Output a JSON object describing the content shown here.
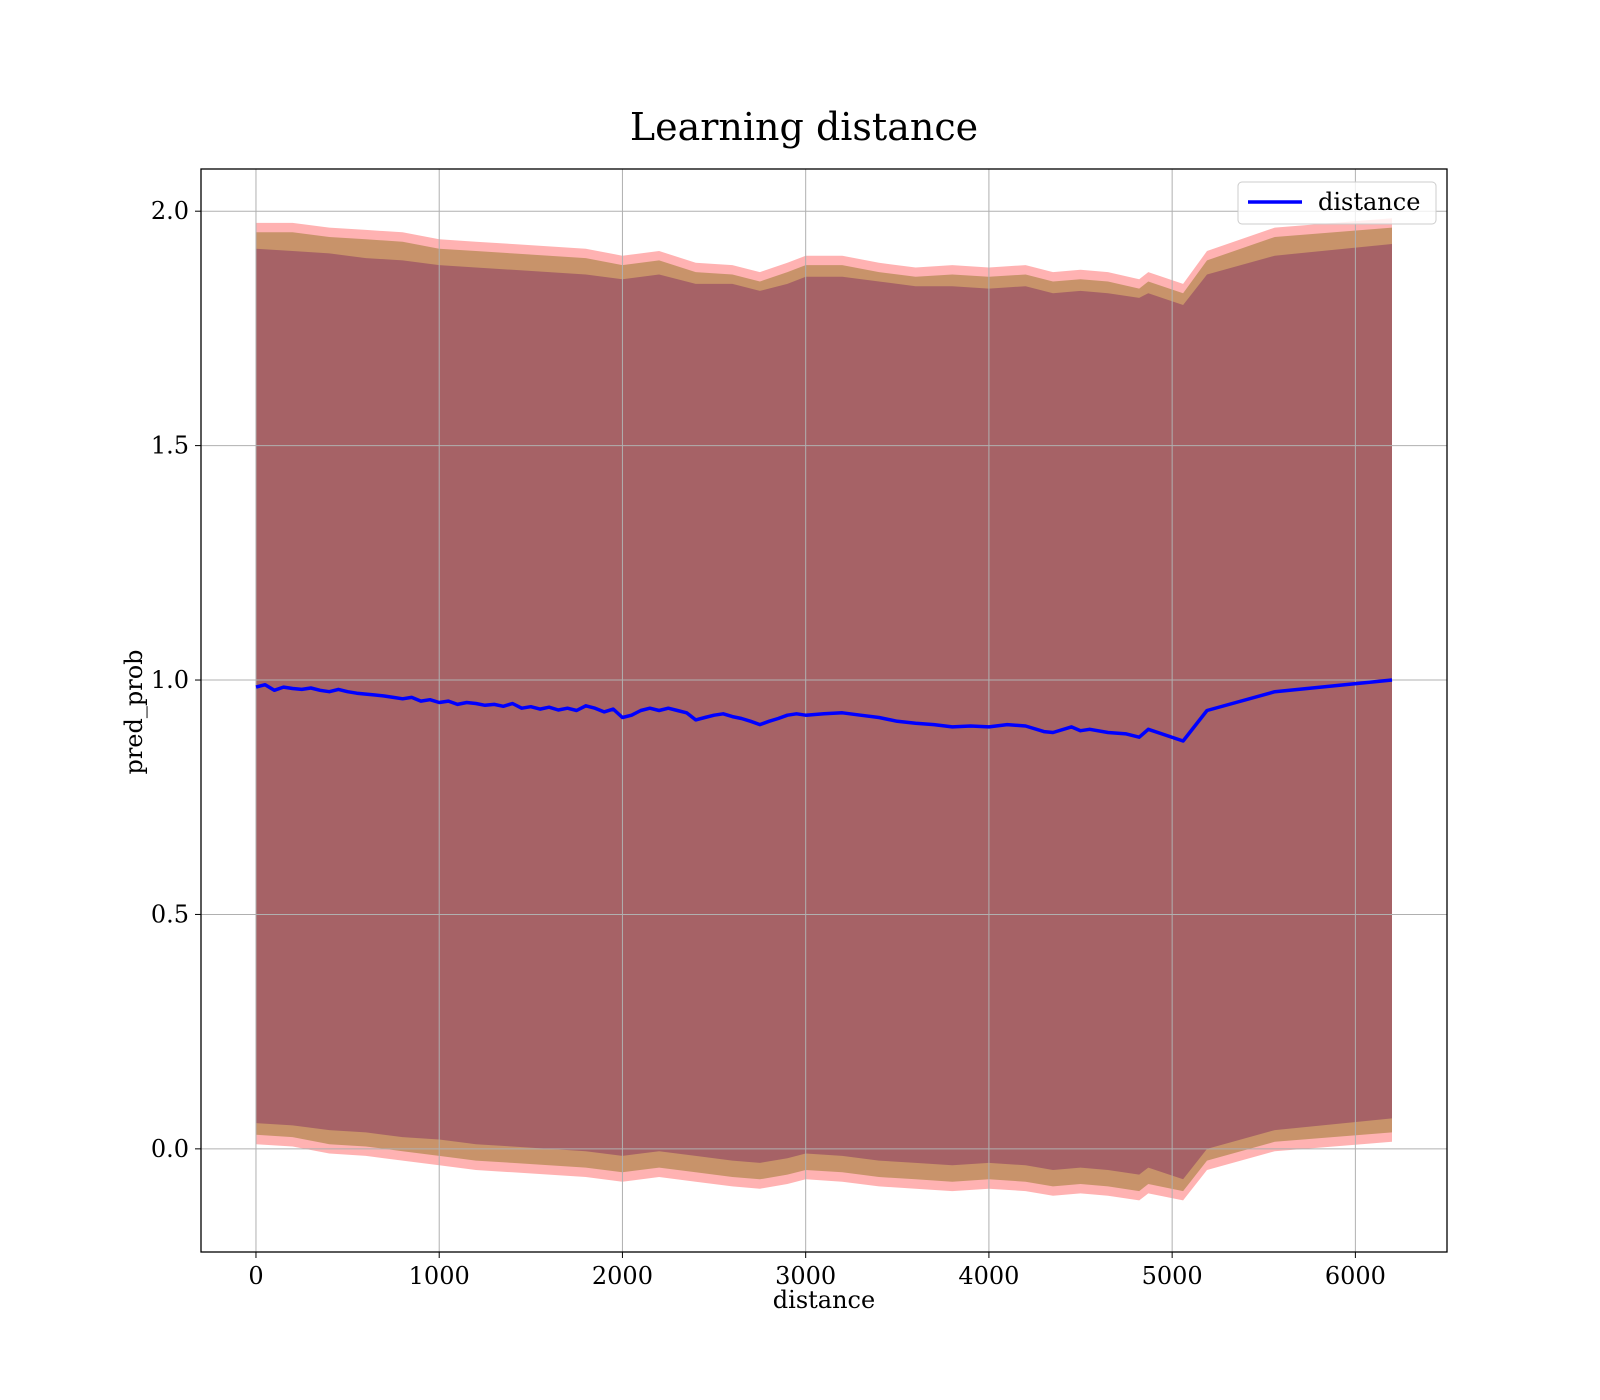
{
  "chart_data": {
    "type": "line",
    "title": "Learning distance",
    "xlabel": "distance",
    "ylabel": "pred_prob",
    "xlim": [
      -300,
      6500
    ],
    "ylim": [
      -0.22,
      2.09
    ],
    "xticks": [
      0,
      1000,
      2000,
      3000,
      4000,
      5000,
      6000
    ],
    "xtick_labels": [
      "0",
      "1000",
      "2000",
      "3000",
      "4000",
      "5000",
      "6000"
    ],
    "yticks": [
      0.0,
      0.5,
      1.0,
      1.5,
      2.0
    ],
    "ytick_labels": [
      "0.0",
      "0.5",
      "1.0",
      "1.5",
      "2.0"
    ],
    "grid": true,
    "legend": {
      "position": "top-right"
    },
    "series": [
      {
        "name": "distance",
        "color": "#0000ff",
        "x": [
          0,
          50,
          100,
          150,
          200,
          250,
          300,
          350,
          400,
          450,
          500,
          550,
          600,
          650,
          700,
          750,
          800,
          850,
          900,
          950,
          1000,
          1050,
          1100,
          1150,
          1200,
          1250,
          1300,
          1350,
          1400,
          1450,
          1500,
          1550,
          1600,
          1650,
          1700,
          1750,
          1800,
          1850,
          1900,
          1950,
          2000,
          2050,
          2100,
          2150,
          2200,
          2250,
          2300,
          2350,
          2400,
          2450,
          2500,
          2550,
          2600,
          2650,
          2700,
          2750,
          2800,
          2850,
          2900,
          2950,
          3000,
          3100,
          3200,
          3300,
          3400,
          3500,
          3600,
          3700,
          3800,
          3900,
          4000,
          4100,
          4200,
          4300,
          4350,
          4450,
          4500,
          4550,
          4650,
          4750,
          4820,
          4870,
          5060,
          5190,
          5560,
          6200
        ],
        "y": [
          0.985,
          0.99,
          0.978,
          0.985,
          0.982,
          0.98,
          0.983,
          0.978,
          0.975,
          0.98,
          0.975,
          0.972,
          0.97,
          0.968,
          0.966,
          0.963,
          0.96,
          0.963,
          0.955,
          0.958,
          0.952,
          0.955,
          0.948,
          0.952,
          0.95,
          0.946,
          0.948,
          0.944,
          0.95,
          0.94,
          0.943,
          0.938,
          0.942,
          0.936,
          0.94,
          0.935,
          0.945,
          0.94,
          0.932,
          0.938,
          0.92,
          0.925,
          0.935,
          0.94,
          0.935,
          0.94,
          0.935,
          0.93,
          0.915,
          0.92,
          0.925,
          0.928,
          0.922,
          0.918,
          0.912,
          0.905,
          0.912,
          0.918,
          0.925,
          0.928,
          0.925,
          0.928,
          0.93,
          0.925,
          0.92,
          0.912,
          0.908,
          0.905,
          0.9,
          0.902,
          0.9,
          0.905,
          0.902,
          0.89,
          0.888,
          0.9,
          0.892,
          0.895,
          0.888,
          0.885,
          0.878,
          0.895,
          0.87,
          0.935,
          0.975,
          1.0
        ]
      }
    ],
    "bands": [
      {
        "color": "#ff0000",
        "opacity": 0.3,
        "x": [
          0,
          200,
          400,
          600,
          800,
          1000,
          1200,
          1400,
          1600,
          1800,
          2000,
          2200,
          2400,
          2600,
          2750,
          2900,
          3000,
          3200,
          3400,
          3600,
          3800,
          4000,
          4200,
          4350,
          4500,
          4650,
          4820,
          4870,
          5060,
          5190,
          5560,
          6200
        ],
        "upper": [
          1.975,
          1.975,
          1.965,
          1.96,
          1.955,
          1.94,
          1.935,
          1.93,
          1.925,
          1.92,
          1.905,
          1.915,
          1.89,
          1.885,
          1.87,
          1.89,
          1.905,
          1.905,
          1.89,
          1.88,
          1.885,
          1.88,
          1.885,
          1.87,
          1.875,
          1.87,
          1.855,
          1.87,
          1.845,
          1.915,
          1.965,
          1.985
        ],
        "lower": [
          0.01,
          0.005,
          -0.01,
          -0.015,
          -0.025,
          -0.035,
          -0.045,
          -0.05,
          -0.055,
          -0.06,
          -0.07,
          -0.06,
          -0.07,
          -0.08,
          -0.085,
          -0.075,
          -0.065,
          -0.07,
          -0.08,
          -0.085,
          -0.09,
          -0.085,
          -0.09,
          -0.1,
          -0.095,
          -0.1,
          -0.11,
          -0.095,
          -0.11,
          -0.045,
          -0.005,
          0.015
        ]
      },
      {
        "color": "#9a7a30",
        "opacity": 0.55,
        "x": [
          0,
          200,
          400,
          600,
          800,
          1000,
          1200,
          1400,
          1600,
          1800,
          2000,
          2200,
          2400,
          2600,
          2750,
          2900,
          3000,
          3200,
          3400,
          3600,
          3800,
          4000,
          4200,
          4350,
          4500,
          4650,
          4820,
          4870,
          5060,
          5190,
          5560,
          6200
        ],
        "upper": [
          1.955,
          1.955,
          1.945,
          1.94,
          1.935,
          1.92,
          1.915,
          1.91,
          1.905,
          1.9,
          1.885,
          1.895,
          1.87,
          1.865,
          1.85,
          1.87,
          1.885,
          1.885,
          1.87,
          1.86,
          1.865,
          1.86,
          1.865,
          1.85,
          1.855,
          1.85,
          1.835,
          1.85,
          1.825,
          1.895,
          1.945,
          1.965
        ],
        "lower": [
          0.03,
          0.025,
          0.01,
          0.005,
          -0.005,
          -0.015,
          -0.025,
          -0.03,
          -0.035,
          -0.04,
          -0.05,
          -0.04,
          -0.05,
          -0.06,
          -0.065,
          -0.055,
          -0.045,
          -0.05,
          -0.06,
          -0.065,
          -0.07,
          -0.065,
          -0.07,
          -0.08,
          -0.075,
          -0.08,
          -0.09,
          -0.075,
          -0.09,
          -0.025,
          0.015,
          0.035
        ]
      },
      {
        "color": "#8b3a62",
        "opacity": 0.55,
        "x": [
          0,
          200,
          400,
          600,
          800,
          1000,
          1200,
          1400,
          1600,
          1800,
          2000,
          2200,
          2400,
          2600,
          2750,
          2900,
          3000,
          3200,
          3400,
          3600,
          3800,
          4000,
          4200,
          4350,
          4500,
          4650,
          4820,
          4870,
          5060,
          5190,
          5560,
          6200
        ],
        "upper": [
          1.92,
          1.915,
          1.91,
          1.9,
          1.895,
          1.885,
          1.88,
          1.875,
          1.87,
          1.865,
          1.855,
          1.865,
          1.845,
          1.845,
          1.83,
          1.845,
          1.86,
          1.86,
          1.85,
          1.84,
          1.84,
          1.835,
          1.84,
          1.825,
          1.83,
          1.825,
          1.815,
          1.825,
          1.8,
          1.865,
          1.905,
          1.93
        ],
        "lower": [
          0.055,
          0.05,
          0.04,
          0.035,
          0.025,
          0.02,
          0.01,
          0.005,
          0.0,
          -0.005,
          -0.015,
          -0.005,
          -0.015,
          -0.025,
          -0.03,
          -0.02,
          -0.01,
          -0.015,
          -0.025,
          -0.03,
          -0.035,
          -0.03,
          -0.035,
          -0.045,
          -0.04,
          -0.045,
          -0.055,
          -0.04,
          -0.065,
          0.0,
          0.04,
          0.065
        ]
      }
    ]
  }
}
